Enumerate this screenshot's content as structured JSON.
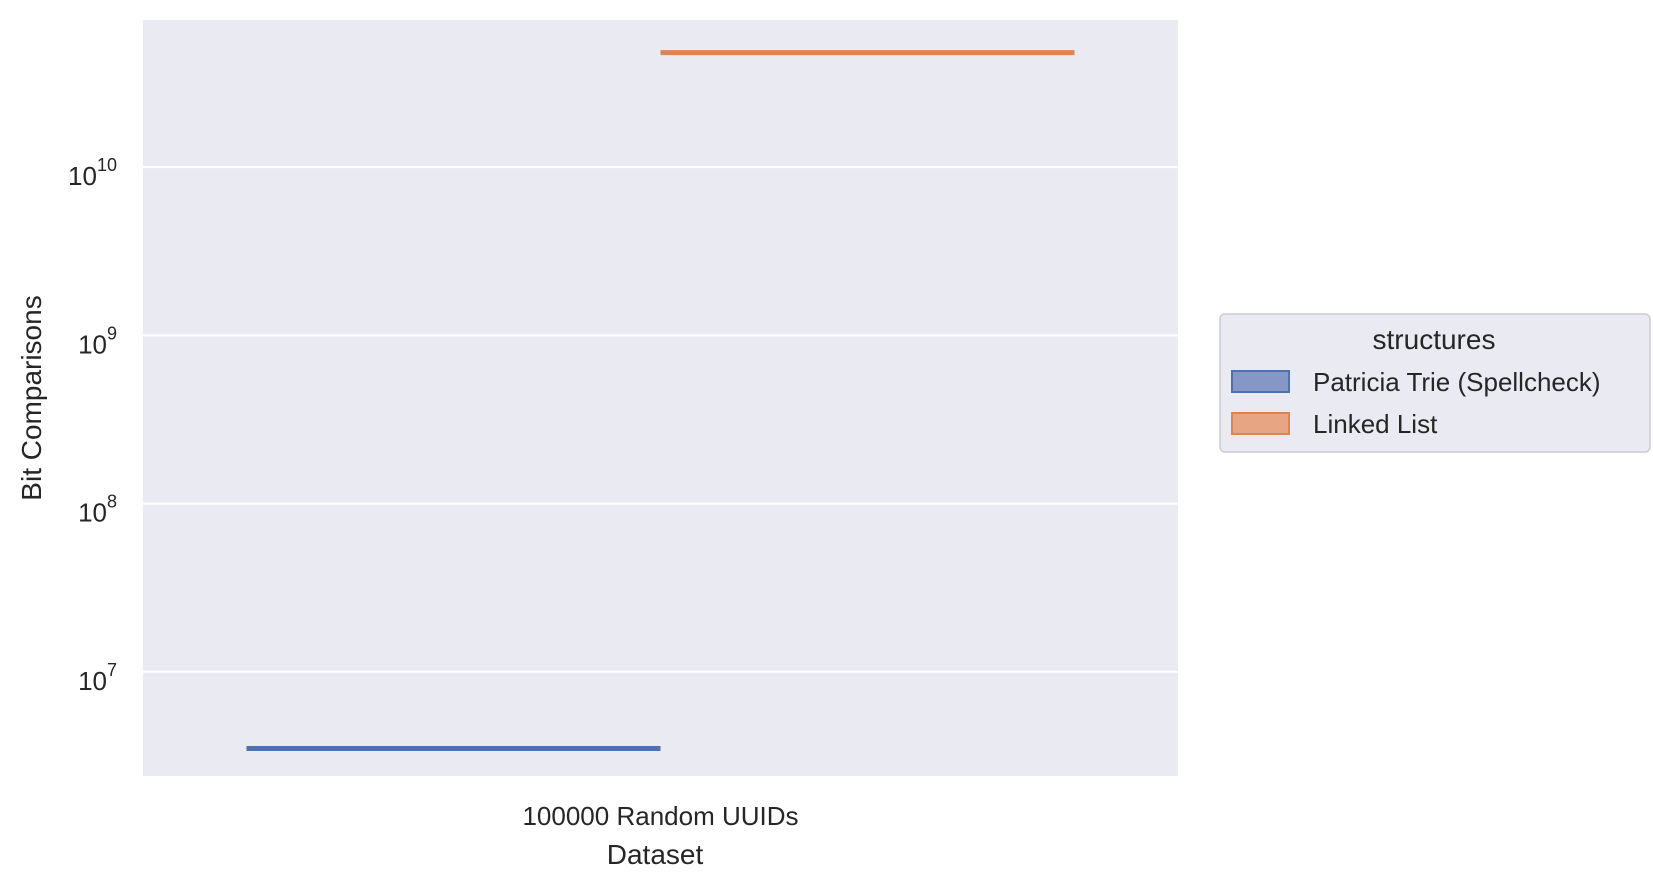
{
  "chart_data": {
    "type": "bar",
    "title": "",
    "xlabel": "Dataset",
    "ylabel": "Bit Comparisons",
    "yscale": "log",
    "ylim": [
      2400000,
      75000000000
    ],
    "yticks": [
      {
        "value": 10000000,
        "base": "10",
        "exp": "7"
      },
      {
        "value": 100000000,
        "base": "10",
        "exp": "8"
      },
      {
        "value": 1000000000,
        "base": "10",
        "exp": "9"
      },
      {
        "value": 10000000000,
        "base": "10",
        "exp": "10"
      }
    ],
    "categories": [
      "100000 Random UUIDs"
    ],
    "series": [
      {
        "name": "Patricia Trie (Spellcheck)",
        "values": [
          3500000
        ],
        "color": "#4c72b0",
        "fill": "#8497c6"
      },
      {
        "name": "Linked List",
        "values": [
          48000000000
        ],
        "color": "#dd8452",
        "fill": "#e8a583"
      }
    ],
    "grid": true,
    "background": "#eaeaf2",
    "legend": {
      "title": "structures",
      "placement": "center-right outside"
    }
  }
}
